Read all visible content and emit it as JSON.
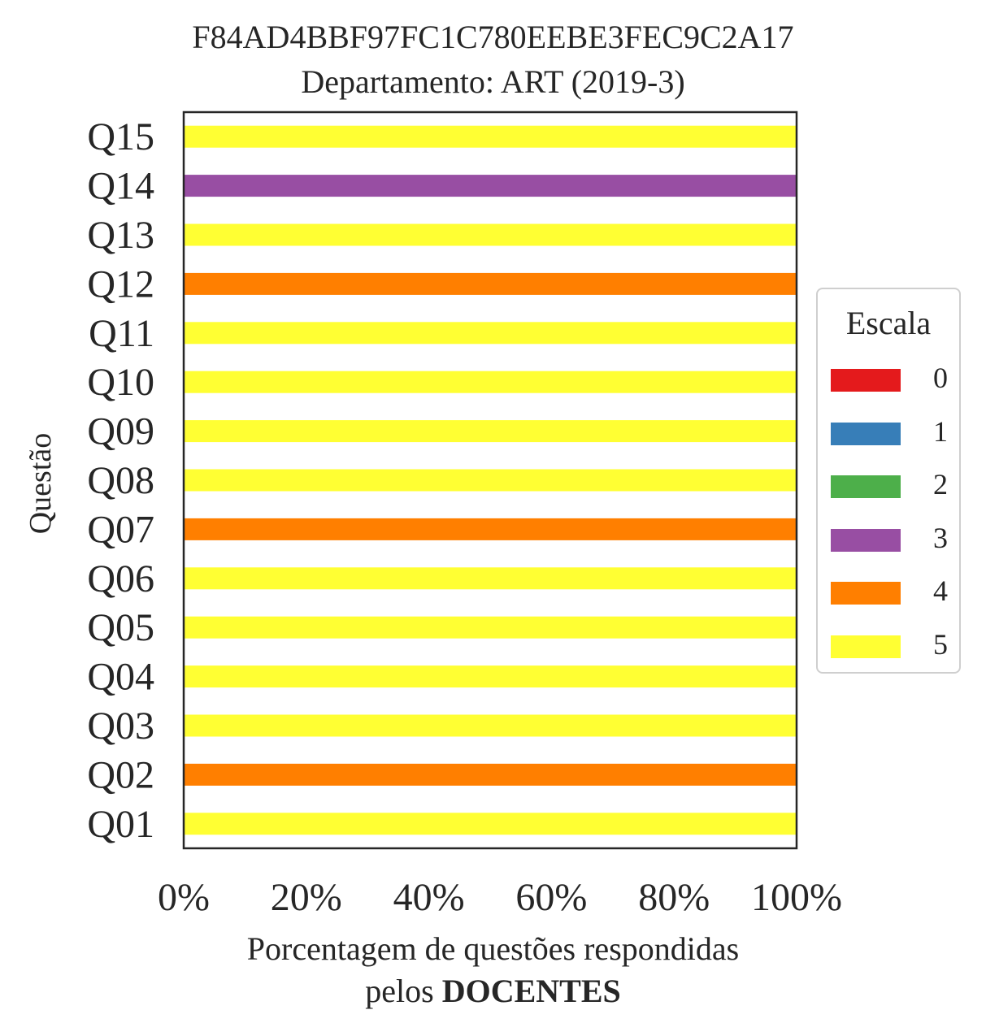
{
  "chart_data": {
    "type": "bar",
    "orientation": "horizontal",
    "stacked": true,
    "title": "F84AD4BBF97FC1C780EEBE3FEC9C2A17",
    "subtitle": "Departamento: ART (2019-3)",
    "xlabel_line1": "Porcentagem de questões respondidas",
    "xlabel_line2_prefix": "pelos ",
    "xlabel_line2_bold": "DOCENTES",
    "ylabel": "Questão",
    "xlim": [
      0,
      100
    ],
    "xticks": [
      "0%",
      "20%",
      "40%",
      "60%",
      "80%",
      "100%"
    ],
    "categories": [
      "Q01",
      "Q02",
      "Q03",
      "Q04",
      "Q05",
      "Q06",
      "Q07",
      "Q08",
      "Q09",
      "Q10",
      "Q11",
      "Q12",
      "Q13",
      "Q14",
      "Q15"
    ],
    "legend_title": "Escala",
    "legend_position": "center-right",
    "grid": false,
    "series": [
      {
        "name": "0",
        "color": "#e41a1c",
        "values": [
          0,
          0,
          0,
          0,
          0,
          0,
          0,
          0,
          0,
          0,
          0,
          0,
          0,
          0,
          0
        ]
      },
      {
        "name": "1",
        "color": "#377eb8",
        "values": [
          0,
          0,
          0,
          0,
          0,
          0,
          0,
          0,
          0,
          0,
          0,
          0,
          0,
          0,
          0
        ]
      },
      {
        "name": "2",
        "color": "#4daf4a",
        "values": [
          0,
          0,
          0,
          0,
          0,
          0,
          0,
          0,
          0,
          0,
          0,
          0,
          0,
          0,
          0
        ]
      },
      {
        "name": "3",
        "color": "#984ea3",
        "values": [
          0,
          0,
          0,
          0,
          0,
          0,
          0,
          0,
          0,
          0,
          0,
          0,
          0,
          100,
          0
        ]
      },
      {
        "name": "4",
        "color": "#ff7f00",
        "values": [
          0,
          100,
          0,
          0,
          0,
          0,
          100,
          0,
          0,
          0,
          0,
          100,
          0,
          0,
          0
        ]
      },
      {
        "name": "5",
        "color": "#ffff33",
        "values": [
          100,
          0,
          100,
          100,
          100,
          100,
          0,
          100,
          100,
          100,
          100,
          0,
          100,
          0,
          100
        ]
      }
    ]
  }
}
